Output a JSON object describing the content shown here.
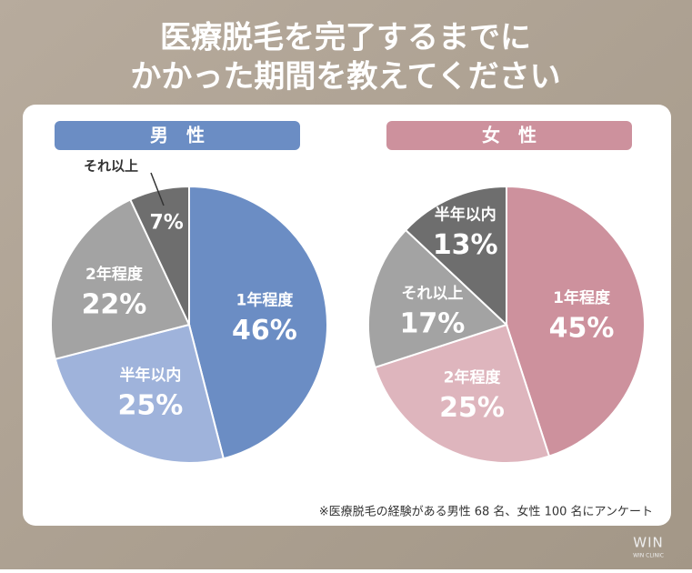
{
  "header": {
    "title_lines": [
      "医療脱毛を完了するまでに",
      "かかった期間を教えてください"
    ]
  },
  "chart_data": [
    {
      "type": "pie",
      "title": "男　性",
      "header_color": "#6b8dc4",
      "categories": [
        "1年程度",
        "半年以内",
        "2年程度",
        "それ以上"
      ],
      "values": [
        46,
        25,
        22,
        7
      ],
      "value_labels": [
        "46%",
        "25%",
        "22%",
        "7%"
      ],
      "colors": [
        "#6b8dc4",
        "#9fb3db",
        "#a3a3a3",
        "#6e6e6e"
      ]
    },
    {
      "type": "pie",
      "title": "女　性",
      "header_color": "#cd919d",
      "categories": [
        "1年程度",
        "2年程度",
        "それ以上",
        "半年以内"
      ],
      "values": [
        45,
        25,
        17,
        13
      ],
      "value_labels": [
        "45%",
        "25%",
        "17%",
        "13%"
      ],
      "colors": [
        "#cd919d",
        "#deb5bd",
        "#a3a3a3",
        "#6e6e6e"
      ]
    }
  ],
  "footnote": "※医療脱毛の経験がある男性 68 名、女性 100 名にアンケート",
  "logo": {
    "text": "WIN",
    "subtext": "WIN CLINIC"
  }
}
